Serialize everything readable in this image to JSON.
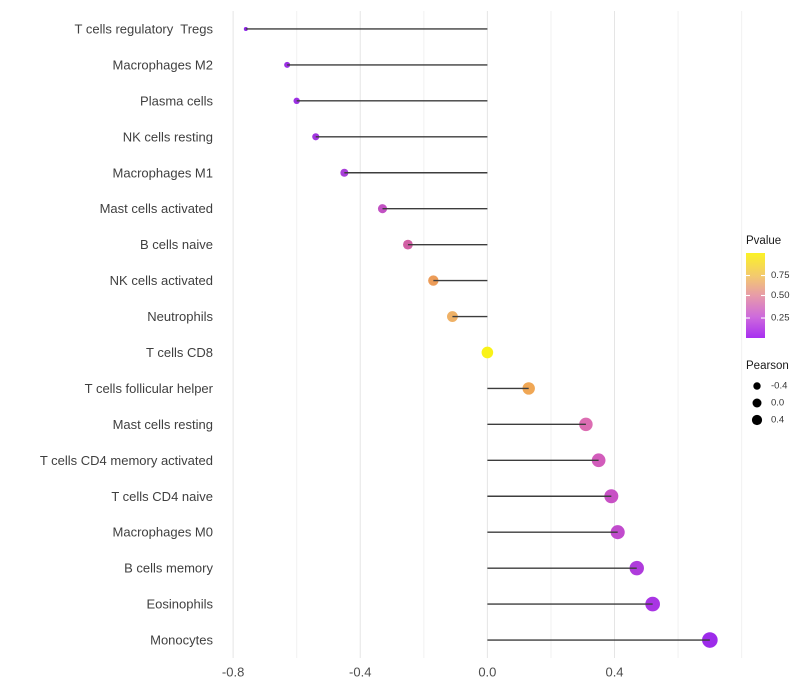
{
  "chart_data": {
    "type": "lollipop",
    "orientation": "horizontal",
    "title": "",
    "xlabel": "",
    "ylabel": "",
    "xlim": [
      -0.857,
      0.82
    ],
    "x_major_ticks": [
      -0.8,
      -0.4,
      0.0,
      0.4
    ],
    "x_major_tick_labels": [
      "-0.8",
      "-0.4",
      "0.0",
      "0.4"
    ],
    "x_minor_ticks": [
      -0.6,
      -0.2,
      0.2,
      0.6,
      0.8
    ],
    "grid": "vertical-only",
    "grid_major_color": "#e5e5e5",
    "grid_minor_color": "#f1f1f1",
    "stem_color": "#3d3d3d",
    "categories": [
      "T cells regulatory  Tregs",
      "Macrophages M2",
      "Plasma cells",
      "NK cells resting",
      "Macrophages M1",
      "Mast cells activated",
      "B cells naive",
      "NK cells activated",
      "Neutrophils",
      "T cells CD8",
      "T cells follicular helper",
      "Mast cells resting",
      "T cells CD4 memory activated",
      "T cells CD4 naive",
      "Macrophages M0",
      "B cells memory",
      "Eosinophils",
      "Monocytes"
    ],
    "series": [
      {
        "name": "Pearson",
        "values": [
          -0.76,
          -0.63,
          -0.6,
          -0.54,
          -0.45,
          -0.33,
          -0.25,
          -0.17,
          -0.11,
          0.0,
          0.13,
          0.31,
          0.35,
          0.39,
          0.41,
          0.47,
          0.52,
          0.7
        ],
        "point_colors": [
          "#8E24E8",
          "#9B2FE4",
          "#9C31E3",
          "#A136DF",
          "#A93FD9",
          "#C251C3",
          "#D160A4",
          "#EC9C58",
          "#EFB166",
          "#F9F218",
          "#F0A755",
          "#DC6DB2",
          "#D25CBB",
          "#C851C5",
          "#C14BCD",
          "#AF3BDC",
          "#A935E4",
          "#9D2BEA"
        ]
      }
    ],
    "size_encoding": "point size increases with Pearson value",
    "color_encoding": "point color maps Pvalue on yellow-to-purple gradient"
  },
  "legend_pvalue": {
    "title": "Pvalue",
    "tick_labels": [
      "0.75",
      "0.50",
      "0.25"
    ],
    "tick_fractions_from_top": [
      0.265,
      0.5,
      0.765
    ],
    "gradient_stops": [
      "#FBF226",
      "#F3C96F",
      "#E79BA9",
      "#CE6BDC",
      "#A82FF0"
    ],
    "gradient_stop_offsets": [
      0,
      0.27,
      0.5,
      0.75,
      1
    ]
  },
  "legend_pearson": {
    "title": "Pearson",
    "dot_color": "#000000",
    "entries": [
      {
        "label": "-0.4",
        "radius": 3.7
      },
      {
        "label": "0.0",
        "radius": 4.5
      },
      {
        "label": "0.4",
        "radius": 5.1
      }
    ]
  }
}
